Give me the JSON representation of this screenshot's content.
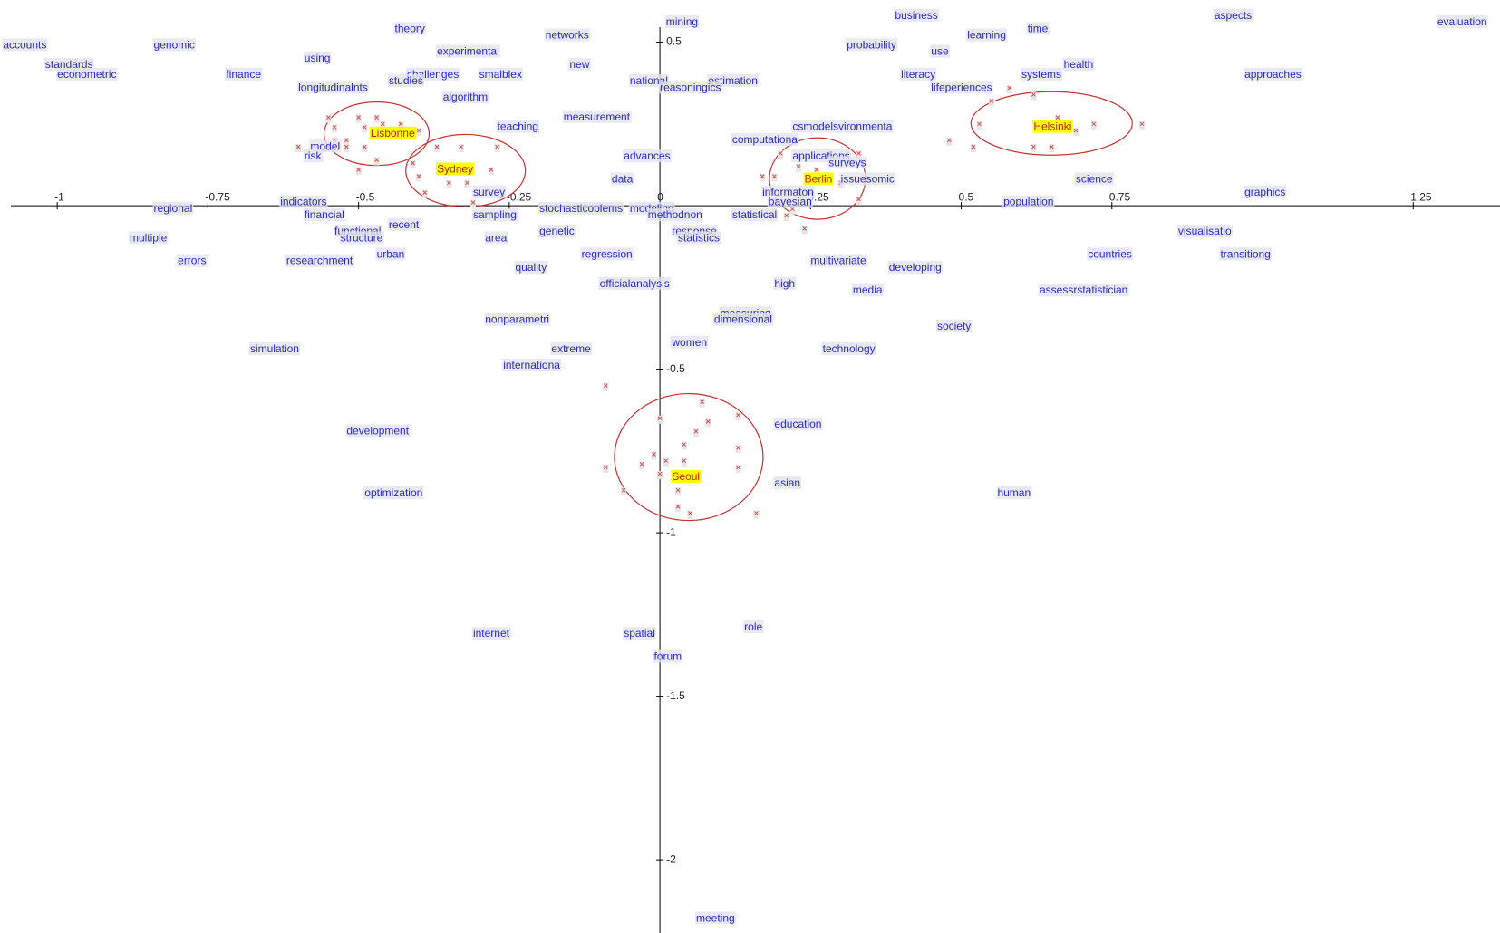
{
  "chart_data": {
    "type": "scatter",
    "xlim": [
      -1.095,
      1.394
    ],
    "ylim": [
      -2.224,
      0.629
    ],
    "xticks": [
      -1,
      -0.75,
      -0.5,
      -0.25,
      0,
      0.25,
      0.5,
      0.75,
      1.25
    ],
    "yticks": [
      0.5,
      -0.5,
      -1,
      -1.5,
      -2
    ],
    "series": [
      {
        "color": "#2a2ac8",
        "labels": [
          "accounts",
          "genomic",
          "theory",
          "experimental",
          "networks",
          "mining",
          "business",
          "aspects",
          "evaluation",
          "probability",
          "learning",
          "time",
          "use",
          "standards",
          "econometric",
          "using",
          "finance",
          "challenges",
          "smalblex",
          "new",
          "studies",
          "national",
          "estimation",
          "reasoningics",
          "literacy",
          "systems",
          "health",
          "approaches",
          "longitudinalnts",
          "algorithm",
          "lifeperiences",
          "teaching",
          "measurement",
          "csmodelsvironmenta",
          "computationa",
          "model",
          "risk",
          "advances",
          "applications",
          "surveys",
          "data",
          "issuesomic",
          "science",
          "graphics",
          "informaton",
          "bayesian",
          "population",
          "regional",
          "indicators",
          "survey",
          "stochasticoblems",
          "modeling",
          "methodnon",
          "financial",
          "sampling",
          "statistical",
          "recent",
          "functional",
          "genetic",
          "response",
          "structure",
          "multiple",
          "area",
          "statistics",
          "visualisatio",
          "urban",
          "regression",
          "countries",
          "transitiong",
          "errors",
          "researchment",
          "multivariate",
          "developing",
          "quality",
          "officialanalysis",
          "high",
          "media",
          "assessrstatistician",
          "measuring",
          "dimensional",
          "nonparametri",
          "society",
          "women",
          "simulation",
          "extreme",
          "technology",
          "internationa",
          "education",
          "development",
          "asian",
          "optimization",
          "human",
          "role",
          "internet",
          "spatial",
          "forum",
          "meeting"
        ],
        "x": [
          -1.09,
          -0.84,
          -0.44,
          -0.37,
          -0.19,
          0.01,
          0.39,
          0.92,
          1.29,
          0.31,
          0.51,
          0.61,
          0.45,
          -1.02,
          -1.0,
          -0.59,
          -0.72,
          -0.42,
          -0.3,
          -0.15,
          -0.45,
          -0.05,
          0.08,
          0.0,
          0.4,
          0.6,
          0.67,
          0.97,
          -0.6,
          -0.36,
          0.45,
          -0.27,
          -0.16,
          0.22,
          0.12,
          -0.58,
          -0.59,
          -0.06,
          0.22,
          0.28,
          -0.08,
          0.3,
          0.69,
          0.97,
          0.17,
          0.18,
          0.57,
          -0.84,
          -0.63,
          -0.31,
          -0.2,
          -0.05,
          -0.02,
          -0.59,
          -0.31,
          0.12,
          -0.45,
          -0.54,
          -0.2,
          0.02,
          -0.53,
          -0.88,
          -0.29,
          0.03,
          0.86,
          -0.47,
          -0.13,
          0.71,
          0.93,
          -0.8,
          -0.62,
          0.25,
          0.38,
          -0.24,
          -0.1,
          0.19,
          0.32,
          0.63,
          0.1,
          0.09,
          -0.29,
          0.46,
          0.02,
          -0.68,
          -0.18,
          0.27,
          -0.26,
          0.19,
          -0.52,
          0.19,
          -0.49,
          0.56,
          0.14,
          -0.31,
          -0.06,
          -0.01,
          0.06
        ],
        "values": [
          0.49,
          0.49,
          0.54,
          0.47,
          0.52,
          0.56,
          0.58,
          0.58,
          0.56,
          0.49,
          0.52,
          0.54,
          0.47,
          0.43,
          0.4,
          0.45,
          0.4,
          0.4,
          0.4,
          0.43,
          0.38,
          0.38,
          0.38,
          0.36,
          0.4,
          0.4,
          0.43,
          0.4,
          0.36,
          0.33,
          0.36,
          0.24,
          0.27,
          0.24,
          0.2,
          0.18,
          0.15,
          0.15,
          0.15,
          0.13,
          0.08,
          0.08,
          0.08,
          0.04,
          0.04,
          0.01,
          0.01,
          -0.01,
          0.01,
          0.04,
          -0.01,
          -0.01,
          -0.03,
          -0.03,
          -0.03,
          -0.03,
          -0.06,
          -0.08,
          -0.08,
          -0.08,
          -0.1,
          -0.1,
          -0.1,
          -0.1,
          -0.08,
          -0.15,
          -0.15,
          -0.15,
          -0.15,
          -0.17,
          -0.17,
          -0.17,
          -0.19,
          -0.19,
          -0.24,
          -0.24,
          -0.26,
          -0.26,
          -0.33,
          -0.35,
          -0.35,
          -0.37,
          -0.42,
          -0.44,
          -0.44,
          -0.44,
          -0.49,
          -0.67,
          -0.69,
          -0.85,
          -0.88,
          -0.88,
          -1.29,
          -1.31,
          -1.31,
          -1.38,
          -2.18
        ]
      },
      {
        "color": "#c02020",
        "background": "#ffff00",
        "ellipse_color": "#c83030",
        "labels": [
          "Lisbonne",
          "Sydney",
          "Berlin",
          "Helsinki",
          "Seoul"
        ],
        "x": [
          -0.48,
          -0.37,
          0.24,
          0.62,
          0.02
        ],
        "values": [
          0.22,
          0.11,
          0.08,
          0.24,
          -0.83
        ]
      },
      {
        "color": "#e05050",
        "x": [
          -0.55,
          -0.5,
          -0.47,
          -0.54,
          -0.49,
          -0.46,
          -0.43,
          -0.52,
          -0.54,
          -0.49,
          -0.6,
          -0.47,
          -0.5,
          -0.52,
          -0.4,
          -0.37,
          -0.33,
          -0.27,
          -0.4,
          -0.35,
          -0.32,
          -0.28,
          -0.39,
          -0.31,
          -0.41,
          0.2,
          0.23,
          0.26,
          0.17,
          0.19,
          0.28,
          0.33,
          0.3,
          0.33,
          0.22,
          0.24,
          0.21,
          0.55,
          0.58,
          0.62,
          0.53,
          0.66,
          0.72,
          0.8,
          0.48,
          0.52,
          0.62,
          0.65,
          0.69,
          -0.09,
          0.07,
          0.0,
          0.08,
          0.13,
          0.06,
          0.04,
          0.13,
          -0.01,
          0.01,
          -0.03,
          0.04,
          0.13,
          0.0,
          -0.06,
          0.03,
          0.03,
          0.05,
          0.16,
          -0.09
        ],
        "values": [
          0.27,
          0.27,
          0.27,
          0.24,
          0.24,
          0.25,
          0.25,
          0.2,
          0.2,
          0.18,
          0.18,
          0.14,
          0.11,
          0.18,
          0.23,
          0.18,
          0.18,
          0.18,
          0.09,
          0.07,
          0.07,
          0.11,
          0.04,
          0.01,
          0.13,
          0.16,
          0.12,
          0.11,
          0.09,
          0.09,
          0.16,
          0.16,
          0.07,
          0.02,
          -0.01,
          -0.07,
          -0.03,
          0.32,
          0.36,
          0.34,
          0.25,
          0.27,
          0.25,
          0.25,
          0.2,
          0.18,
          0.18,
          0.18,
          0.23,
          -0.55,
          -0.6,
          -0.65,
          -0.66,
          -0.64,
          -0.69,
          -0.73,
          -0.74,
          -0.76,
          -0.78,
          -0.79,
          -0.78,
          -0.8,
          -0.82,
          -0.87,
          -0.87,
          -0.92,
          -0.94,
          -0.94,
          -0.8
        ]
      }
    ]
  }
}
